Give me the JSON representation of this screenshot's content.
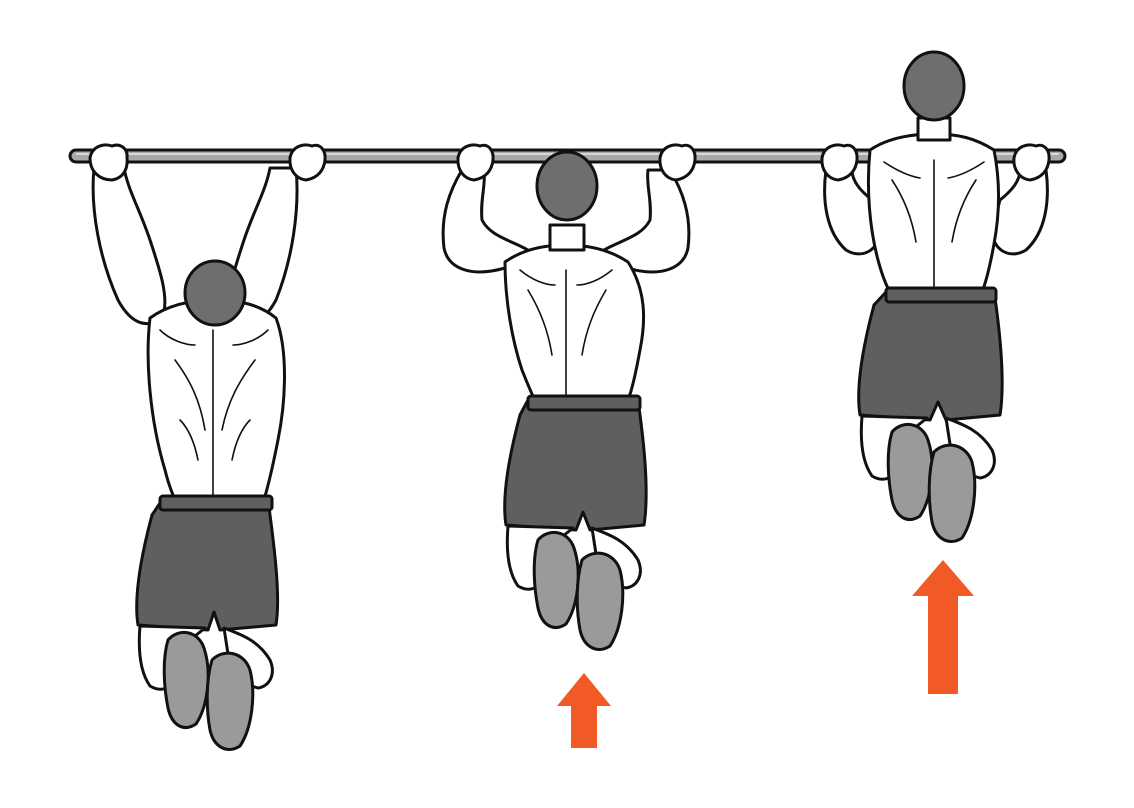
{
  "colors": {
    "background": "#ffffff",
    "bar": "#a9a9a9",
    "outline": "#111111",
    "skin": "#ffffff",
    "hair": "#6e6e6e",
    "shorts": "#5f5f5f",
    "shoe": "#9a9a9a",
    "arrow": "#f15a24"
  },
  "figures": [
    {
      "phase": "dead-hang",
      "arrow_size": null
    },
    {
      "phase": "mid-pull",
      "arrow_size": "small"
    },
    {
      "phase": "top-chin-over-bar",
      "arrow_size": "large"
    }
  ]
}
